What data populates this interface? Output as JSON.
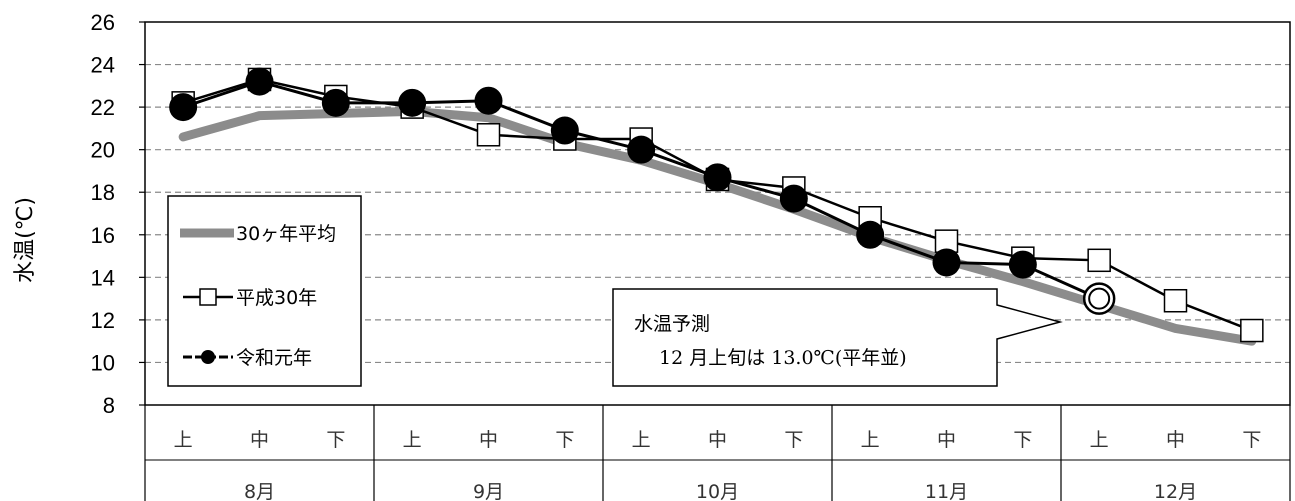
{
  "chart_data": {
    "type": "line",
    "ylabel": "水温(℃)",
    "ylim": [
      8,
      26
    ],
    "yticks": [
      8,
      10,
      12,
      14,
      16,
      18,
      20,
      22,
      24,
      26
    ],
    "grid": true,
    "legend_position": "left",
    "x_sub": [
      "上",
      "中",
      "下",
      "上",
      "中",
      "下",
      "上",
      "中",
      "下",
      "上",
      "中",
      "下",
      "上",
      "中",
      "下"
    ],
    "x_months": [
      "8月",
      "9月",
      "10月",
      "11月",
      "12月"
    ],
    "series": [
      {
        "name": "30ヶ年平均",
        "style": "thick-gray",
        "color": "#8c8c8c",
        "values": [
          20.6,
          21.6,
          21.7,
          21.8,
          21.5,
          20.3,
          19.5,
          18.4,
          17.2,
          15.9,
          14.8,
          13.8,
          12.7,
          11.6,
          11.0
        ]
      },
      {
        "name": "平成30年",
        "style": "open-square",
        "color": "#000000",
        "values": [
          22.2,
          23.3,
          22.5,
          22.0,
          20.7,
          20.5,
          20.5,
          18.6,
          18.2,
          16.8,
          15.7,
          14.9,
          14.8,
          12.9,
          11.5
        ]
      },
      {
        "name": "令和元年",
        "style": "filled-circle",
        "color": "#000000",
        "values": [
          22.0,
          23.2,
          22.2,
          22.2,
          22.3,
          20.9,
          20.0,
          18.7,
          17.7,
          16.0,
          14.7,
          14.6,
          null,
          null,
          null
        ]
      }
    ],
    "forecast": {
      "index": 12,
      "value": 13.0
    },
    "annotation": {
      "line1": "水温予測",
      "line2": "12 月上旬は 13.0℃(平年並)"
    }
  }
}
